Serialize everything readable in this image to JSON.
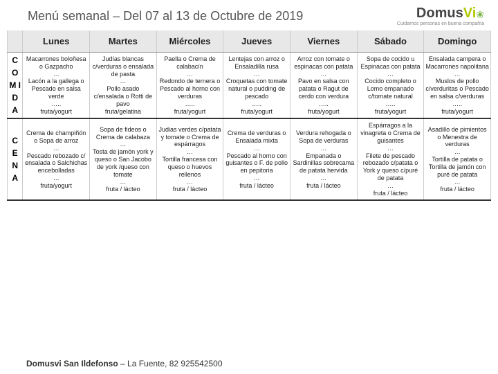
{
  "title": "Menú semanal – Del 07  al 13 de Octubre de 2019",
  "logo": {
    "main": "Domus",
    "accent": "Vi",
    "tag": "Cuidamos personas en buena compañía"
  },
  "days": [
    "Lunes",
    "Martes",
    "Miércoles",
    "Jueves",
    "Viernes",
    "Sábado",
    "Domingo"
  ],
  "rows": [
    {
      "label": "C\nO\nM\nI\nD\nA",
      "cells": [
        "Macarrones boloñesa o Gazpacho\n…\nLacón a la gallega o Pescado en salsa verde\n…..\nfruta/yogurt",
        "Judías blancas c/verduras o ensalada de pasta\n…\nPollo asado c/ensalada o Rotti de pavo\nfruta/gelatina",
        "Paella o Crema de calabacín\n…\nRedondo de ternera o Pescado al horno con verduras\n…..\nfruta/yogurt",
        "Lentejas con arroz o Ensaladilla rusa\n…\nCroquetas con tomate natural o pudding de pescado\n…..\nfruta/yogurt",
        "Arroz con tomate o espinacas con patata\n…\nPavo en salsa con patata o Ragut de cerdo con verdura\n…..\nfruta/yogurt",
        "Sopa de cocido u Espinacas con patata\n…\nCocido completo o Lomo empanado c/tomate natural\n…..\nfruta/yogurt",
        "Ensalada campera o Macarrones napolitana\n…\nMuslos de pollo c/verduritas o Pescado en salsa c/verduras\n…..\nfruta/yogurt"
      ]
    },
    {
      "label": "C\nE\nN\nA",
      "cells": [
        "Crema de champiñón o Sopa de arroz\n…\nPescado rebozado c/ ensalada o Salchichas encebolladas\n…\nfruta/yogurt",
        "Sopa de fideos o Crema de calabaza\n…\nTosta de jamón york y queso o San Jacobo de york /queso con tomate\n…\nfruta / lácteo",
        "Judias verdes c/patata y tomate o Crema de espárragos\n…\nTortilla francesa con queso o huevos rellenos\n…\nfruta / lácteo",
        "Crema de verduras o Ensalada mixta\n…\nPescado al horno con guisantes o F. de pollo en pepitoria\n…\nfruta / lácteo",
        "Verdura rehogada o Sopa de verduras\n…\nEmpanada o Sardinillas sobrecama de patata hervida\n…\nfruta / lácteo",
        "Espárragos a la vinagreta o Crema de guisantes\n…\nFilete de pescado rebozado c/patata o York y queso c/puré de patata\n…\nfruta / lácteo",
        "Asadillo de pimientos o Menestra de verduras\n…\nTortilla de patata o Tortilla de jamón con puré de patata\n…\nfruta / lácteo"
      ]
    }
  ],
  "footer": {
    "name": "Domusvi San Ildefonso",
    "addr": " – La Fuente, 82       ",
    "phone": "925542500"
  }
}
